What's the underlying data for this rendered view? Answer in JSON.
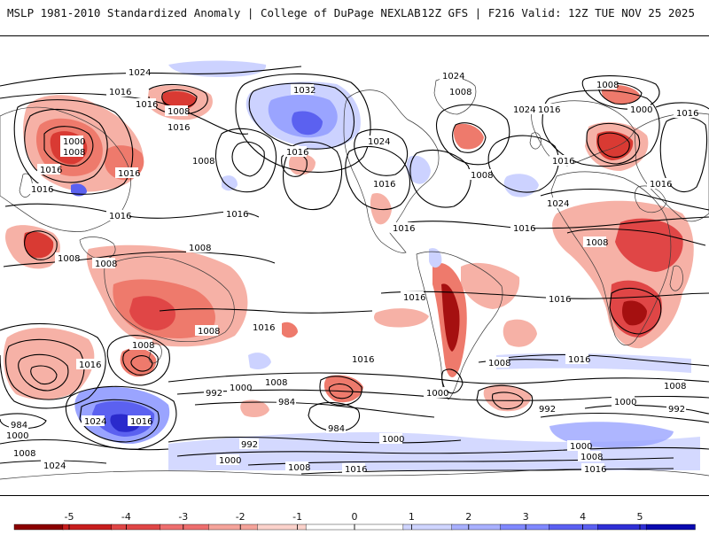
{
  "header": {
    "title": "MSLP 1981-2010 Standardized Anomaly | College of DuPage NEXLAB",
    "run_info": "12Z GFS | F216 Valid: 12Z TUE NOV 25 2025"
  },
  "contour_labels": [
    {
      "id": "l1",
      "text": "1024"
    },
    {
      "id": "l2",
      "text": "1016"
    },
    {
      "id": "l3",
      "text": "1008"
    },
    {
      "id": "l4",
      "text": "1016"
    },
    {
      "id": "l5",
      "text": "1000"
    },
    {
      "id": "l6",
      "text": "1008"
    },
    {
      "id": "l7",
      "text": "1016"
    },
    {
      "id": "l8",
      "text": "1016"
    },
    {
      "id": "l9",
      "text": "1016"
    },
    {
      "id": "l10",
      "text": "1016"
    },
    {
      "id": "l11",
      "text": "1008"
    },
    {
      "id": "l12",
      "text": "1016"
    },
    {
      "id": "l13",
      "text": "1032"
    },
    {
      "id": "l14",
      "text": "1016"
    },
    {
      "id": "l15",
      "text": "1024"
    },
    {
      "id": "l16",
      "text": "1016"
    },
    {
      "id": "l17",
      "text": "1016"
    },
    {
      "id": "l18",
      "text": "1024"
    },
    {
      "id": "l19",
      "text": "1008"
    },
    {
      "id": "l20",
      "text": "1024"
    },
    {
      "id": "l21",
      "text": "1016"
    },
    {
      "id": "l22",
      "text": "1008"
    },
    {
      "id": "l23",
      "text": "1008"
    },
    {
      "id": "l24",
      "text": "1000"
    },
    {
      "id": "l25",
      "text": "1016"
    },
    {
      "id": "l26",
      "text": "1016"
    },
    {
      "id": "l27",
      "text": "1016"
    },
    {
      "id": "l28",
      "text": "1016"
    },
    {
      "id": "l29",
      "text": "1024"
    },
    {
      "id": "l30",
      "text": "1016"
    },
    {
      "id": "l31",
      "text": "1008"
    },
    {
      "id": "l32",
      "text": "1008"
    },
    {
      "id": "l33",
      "text": "1008"
    },
    {
      "id": "l34",
      "text": "1016"
    },
    {
      "id": "l35",
      "text": "1016"
    },
    {
      "id": "l36",
      "text": "1008"
    },
    {
      "id": "l37",
      "text": "1016"
    },
    {
      "id": "l38",
      "text": "1008"
    },
    {
      "id": "l39",
      "text": "1016"
    },
    {
      "id": "l40",
      "text": "1008"
    },
    {
      "id": "l41",
      "text": "1016"
    },
    {
      "id": "l42",
      "text": "1008"
    },
    {
      "id": "l43",
      "text": "1000"
    },
    {
      "id": "l44",
      "text": "1008"
    },
    {
      "id": "l45",
      "text": "1016"
    },
    {
      "id": "l46",
      "text": "1008"
    },
    {
      "id": "l47",
      "text": "1000"
    },
    {
      "id": "l48",
      "text": "992"
    },
    {
      "id": "l49",
      "text": "984"
    },
    {
      "id": "l50",
      "text": "984"
    },
    {
      "id": "l51",
      "text": "1000"
    },
    {
      "id": "l52",
      "text": "992"
    },
    {
      "id": "l53",
      "text": "1000"
    },
    {
      "id": "l54",
      "text": "992"
    },
    {
      "id": "l55",
      "text": "984"
    },
    {
      "id": "l56",
      "text": "1024"
    },
    {
      "id": "l57",
      "text": "1016"
    },
    {
      "id": "l58",
      "text": "992"
    },
    {
      "id": "l59",
      "text": "1000"
    },
    {
      "id": "l60",
      "text": "1000"
    },
    {
      "id": "l61",
      "text": "1008"
    },
    {
      "id": "l62",
      "text": "1016"
    },
    {
      "id": "l63",
      "text": "1024"
    },
    {
      "id": "l64",
      "text": "1000"
    },
    {
      "id": "l65",
      "text": "1008"
    },
    {
      "id": "l66",
      "text": "1008"
    },
    {
      "id": "l67",
      "text": "1016"
    }
  ],
  "colorbar": {
    "ticks": [
      "-5",
      "-4",
      "-3",
      "-2",
      "-1",
      "0",
      "1",
      "2",
      "3",
      "4",
      "5"
    ],
    "colors": [
      "#8b0000",
      "#c81e1e",
      "#e04646",
      "#ee6e6e",
      "#f5a39a",
      "#fbd2cb",
      "#ffffff",
      "#ffffff",
      "#cfd5ff",
      "#a8b0ff",
      "#7f88ff",
      "#5a5ff2",
      "#2f2fd6",
      "#0a0ab0"
    ]
  },
  "fill_colors": {
    "red_light": "#f6b1a6",
    "red_mid": "#ee7a6c",
    "red_dark": "#d93a33",
    "red_deep": "#a51010",
    "blue_light": "#ccd2ff",
    "blue_mid": "#9aa4ff",
    "blue_dark": "#5b61f0",
    "blue_deep": "#2a2acc"
  }
}
